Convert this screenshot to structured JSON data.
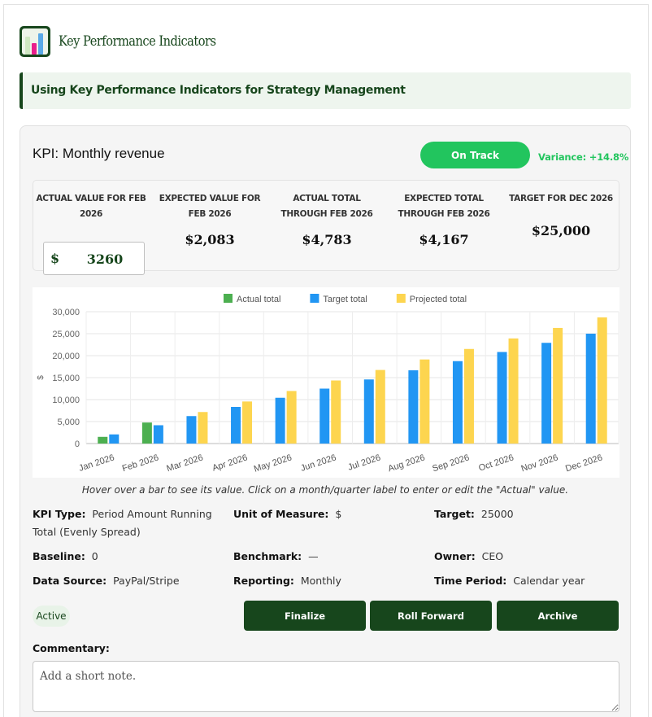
{
  "app": {
    "title": "Key Performance Indicators"
  },
  "banner": {
    "text": "Using Key Performance Indicators for Strategy Management"
  },
  "kpi": {
    "title": "KPI: Monthly revenue",
    "status_button": "On Track",
    "variance": "Variance: +14.8%"
  },
  "summary": {
    "actual_label": "ACTUAL VALUE FOR FEB 2026",
    "currency_symbol": "$",
    "actual_value": "3260",
    "expected_label": "EXPECTED VALUE FOR FEB 2026",
    "expected_value": "$2,083",
    "actual_total_label": "ACTUAL TOTAL THROUGH FEB 2026",
    "actual_total_value": "$4,783",
    "expected_total_label": "EXPECTED TOTAL THROUGH FEB 2026",
    "expected_total_value": "$4,167",
    "target_label": "TARGET FOR DEC 2026",
    "target_value": "$25,000"
  },
  "chart_data": {
    "type": "bar",
    "categories": [
      "Jan 2026",
      "Feb 2026",
      "Mar 2026",
      "Apr 2026",
      "May 2026",
      "Jun 2026",
      "Jul 2026",
      "Aug 2026",
      "Sep 2026",
      "Oct 2026",
      "Nov 2026",
      "Dec 2026"
    ],
    "series": [
      {
        "name": "Actual total",
        "color": "#4caf50",
        "values": [
          1523,
          4783,
          null,
          null,
          null,
          null,
          null,
          null,
          null,
          null,
          null,
          null
        ]
      },
      {
        "name": "Target total",
        "color": "#2196f3",
        "values": [
          2083,
          4167,
          6250,
          8333,
          10417,
          12500,
          14583,
          16667,
          18750,
          20833,
          22917,
          25000
        ]
      },
      {
        "name": "Projected total",
        "color": "#fdd54f",
        "values": [
          null,
          null,
          7175,
          9567,
          11958,
          14350,
          16742,
          19133,
          21525,
          23917,
          26308,
          28700
        ]
      }
    ],
    "ylabel": "$",
    "ylim": [
      0,
      30000
    ],
    "yticks": [
      "0",
      "5,000",
      "10,000",
      "15,000",
      "20,000",
      "25,000",
      "30,000"
    ],
    "grid": true,
    "legend": "top"
  },
  "chart_note": "Hover over a bar to see its value. Click on a month/quarter label to enter or edit the \"Actual\" value.",
  "meta": {
    "kpi_type_label": "KPI Type:",
    "kpi_type_value": "Period Amount Running Total (Evenly Spread)",
    "unit_label": "Unit of Measure:",
    "unit_value": "$",
    "target_label": "Target:",
    "target_value": "25000",
    "baseline_label": "Baseline:",
    "baseline_value": "0",
    "benchmark_label": "Benchmark:",
    "benchmark_value": "—",
    "owner_label": "Owner:",
    "owner_value": "CEO",
    "source_label": "Data Source:",
    "source_value": "PayPal/Stripe",
    "reporting_label": "Reporting:",
    "reporting_value": "Monthly",
    "period_label": "Time Period:",
    "period_value": "Calendar year"
  },
  "status_badge": "Active",
  "actions": {
    "finalize": "Finalize",
    "roll_forward": "Roll Forward",
    "archive": "Archive"
  },
  "commentary": {
    "label": "Commentary:",
    "placeholder": "Add a short note."
  },
  "colors": {
    "brand": "#17461c",
    "on_track": "#22c55e"
  },
  "icons": {
    "logo": "bar-chart-logo-icon",
    "resize": "resize-grip-icon"
  }
}
